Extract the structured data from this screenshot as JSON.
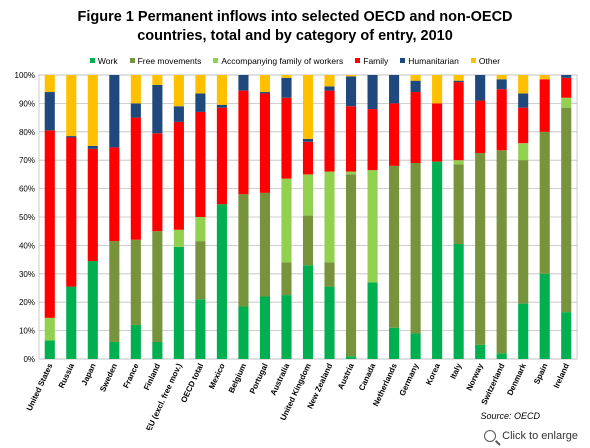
{
  "title_line1": "Figure 1    Permanent inflows into selected OECD and non-OECD",
  "title_line2": "countries, total and by category of entry, 2010",
  "source": "Source: OECD",
  "enlarge": "Click to enlarge",
  "colors": {
    "Work": "#00b050",
    "Free movements": "#77933c",
    "Accompanying family of workers": "#92d050",
    "Family": "#ff0000",
    "Humanitarian": "#1f497d",
    "Other": "#ffc000"
  },
  "chart_data": {
    "type": "bar",
    "stacked": true,
    "title": "Figure 1    Permanent inflows into selected OECD and non-OECD countries, total and by category of entry, 2010",
    "ylim": [
      0,
      100
    ],
    "yticks": [
      "0%",
      "10%",
      "20%",
      "30%",
      "40%",
      "50%",
      "60%",
      "70%",
      "80%",
      "90%",
      "100%"
    ],
    "legend_position": "top",
    "grid": true,
    "categories": [
      "United States",
      "Russia",
      "Japan",
      "Sweden",
      "France",
      "Finland",
      "EU (excl. free mov.)",
      "OECD total",
      "Mexico",
      "Belgium",
      "Portugal",
      "Australia",
      "United Kingdom",
      "New Zealand",
      "Austria",
      "Canada",
      "Netherlands",
      "Germany",
      "Korea",
      "Italy",
      "Norway",
      "Switzerland",
      "Denmark",
      "Spain",
      "Ireland"
    ],
    "series": [
      {
        "name": "Work",
        "values": [
          6.5,
          25.5,
          34.5,
          6,
          12,
          6,
          39.5,
          21,
          54.5,
          18.5,
          22,
          22.5,
          33,
          25.5,
          1,
          27,
          11,
          9,
          69.5,
          40.5,
          5,
          2,
          19.5,
          30,
          16.5
        ]
      },
      {
        "name": "Free movements",
        "values": [
          0,
          0,
          0,
          35.5,
          30,
          39,
          0,
          20.5,
          0,
          39.5,
          36.5,
          11.5,
          17.5,
          8.5,
          64,
          0,
          57,
          60,
          0,
          28,
          67.5,
          71.5,
          50.5,
          50,
          72
        ]
      },
      {
        "name": "Accompanying family of workers",
        "values": [
          8,
          0,
          0,
          0,
          0,
          0,
          6,
          8.5,
          0,
          0,
          0,
          29.5,
          14.5,
          32,
          1,
          39.5,
          0,
          0,
          0,
          1.5,
          0,
          0,
          6,
          0,
          3.5
        ]
      },
      {
        "name": "Family",
        "values": [
          66,
          52.5,
          39.5,
          33,
          43,
          34.5,
          38,
          37,
          34,
          36.5,
          35,
          28.5,
          11.5,
          28.5,
          23,
          21.5,
          22,
          25,
          20.5,
          27.5,
          18.5,
          21.5,
          12.5,
          18.5,
          7
        ]
      },
      {
        "name": "Humanitarian",
        "values": [
          13.5,
          0.5,
          1,
          25.5,
          5,
          17,
          5.5,
          6.5,
          1,
          5.5,
          0.5,
          7,
          1,
          1.5,
          10.5,
          12,
          10,
          4,
          0,
          0.5,
          9,
          3.5,
          5,
          0,
          1
        ]
      },
      {
        "name": "Other",
        "values": [
          6,
          21.5,
          25,
          0,
          10,
          3.5,
          11,
          6.5,
          10.5,
          0,
          6,
          1,
          22.5,
          4,
          0.5,
          0,
          0,
          2,
          10,
          2,
          0,
          1.5,
          6.5,
          1.5,
          0
        ]
      }
    ]
  }
}
